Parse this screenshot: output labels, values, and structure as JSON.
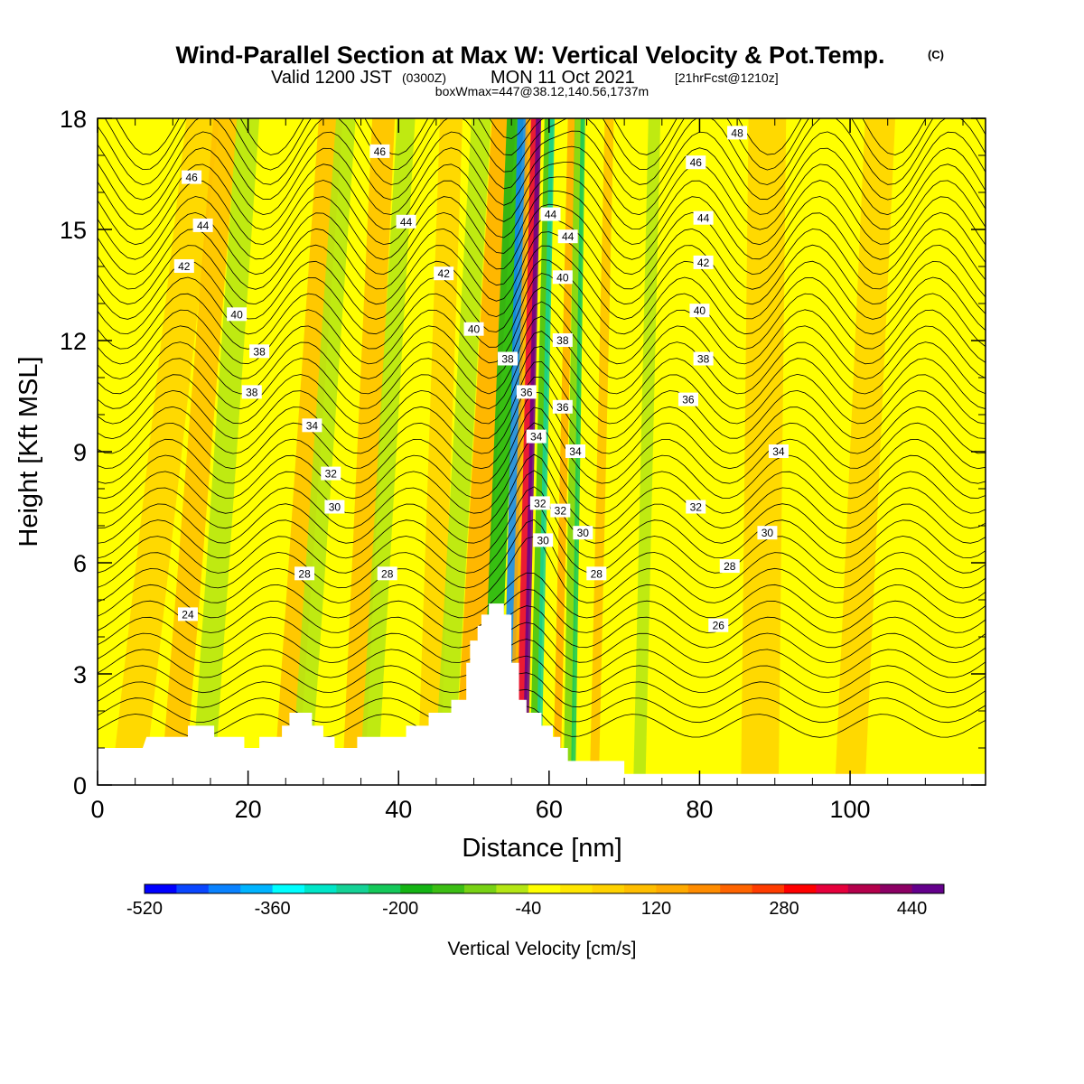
{
  "title": {
    "main": "Wind-Parallel Section at Max W: Vertical Velocity & Pot.Temp.",
    "copyright": "(C)",
    "valid_prefix": "Valid 1200 JST",
    "valid_utc": "(0300Z)",
    "valid_date": "MON 11 Oct 2021",
    "forecast": "[21hrFcst@1210z]",
    "box_info": "boxWmax=447@38.12,140.56,1737m"
  },
  "chart_data": {
    "type": "heatmap",
    "title": "Wind-Parallel Section at Max W: Vertical Velocity & Pot.Temp.",
    "xlabel": "Distance [nm]",
    "ylabel": "Height [Kft MSL]",
    "xlim": [
      0,
      118
    ],
    "ylim": [
      0,
      18
    ],
    "x_ticks": [
      "0",
      "20",
      "40",
      "60",
      "80",
      "100"
    ],
    "y_ticks": [
      "0",
      "3",
      "6",
      "9",
      "12",
      "15",
      "18"
    ],
    "x_tick_values": [
      0,
      20,
      40,
      60,
      80,
      100
    ],
    "y_tick_values": [
      0,
      3,
      6,
      9,
      12,
      15,
      18
    ],
    "grid": false,
    "terrain_profile": [
      [
        0,
        1.0
      ],
      [
        6,
        1.0
      ],
      [
        6.5,
        1.3
      ],
      [
        12,
        1.3
      ],
      [
        12,
        1.6
      ],
      [
        15.5,
        1.6
      ],
      [
        15.5,
        1.3
      ],
      [
        19.5,
        1.3
      ],
      [
        19.5,
        1.0
      ],
      [
        21.5,
        1.0
      ],
      [
        21.5,
        1.3
      ],
      [
        24.5,
        1.3
      ],
      [
        24.5,
        1.6
      ],
      [
        25.5,
        1.6
      ],
      [
        25.5,
        1.95
      ],
      [
        28.5,
        1.95
      ],
      [
        28.5,
        1.6
      ],
      [
        30,
        1.6
      ],
      [
        30,
        1.3
      ],
      [
        31.5,
        1.3
      ],
      [
        31.5,
        1.0
      ],
      [
        34.5,
        1.0
      ],
      [
        34.5,
        1.3
      ],
      [
        41,
        1.3
      ],
      [
        41,
        1.6
      ],
      [
        44,
        1.6
      ],
      [
        44,
        1.95
      ],
      [
        47,
        1.95
      ],
      [
        47,
        2.3
      ],
      [
        49,
        2.3
      ],
      [
        49,
        3.3
      ],
      [
        49.5,
        3.3
      ],
      [
        49.5,
        3.9
      ],
      [
        50.5,
        3.9
      ],
      [
        50.5,
        4.3
      ],
      [
        51,
        4.3
      ],
      [
        51,
        4.6
      ],
      [
        52,
        4.6
      ],
      [
        52,
        4.9
      ],
      [
        54,
        4.9
      ],
      [
        54,
        4.6
      ],
      [
        55,
        4.6
      ],
      [
        55,
        3.3
      ],
      [
        56,
        3.3
      ],
      [
        56,
        2.3
      ],
      [
        57,
        2.3
      ],
      [
        57,
        1.95
      ],
      [
        59,
        1.95
      ],
      [
        59,
        1.6
      ],
      [
        60.5,
        1.6
      ],
      [
        60.5,
        1.3
      ],
      [
        61.5,
        1.3
      ],
      [
        61.5,
        1.0
      ],
      [
        62.5,
        1.0
      ],
      [
        62.5,
        0.65
      ],
      [
        66,
        0.65
      ],
      [
        66,
        0.65
      ],
      [
        70,
        0.65
      ],
      [
        70,
        0.3
      ],
      [
        118,
        0.3
      ]
    ],
    "velocity_field_summary": [
      {
        "x": 55.2,
        "w": -500
      },
      {
        "x": 57.0,
        "w": 440
      },
      {
        "x": 59.2,
        "w": -200
      },
      {
        "x": 63.5,
        "w": -160
      },
      {
        "x": 50.0,
        "w": 120
      }
    ],
    "colorbar": {
      "title": "Vertical Velocity [cm/s]",
      "levels": [
        -520,
        -480,
        -440,
        -400,
        -360,
        -320,
        -280,
        -240,
        -200,
        -160,
        -120,
        -80,
        -40,
        0,
        40,
        80,
        120,
        160,
        200,
        240,
        280,
        320,
        360,
        400,
        440,
        480
      ],
      "colors": [
        "#0000ff",
        "#0a46ff",
        "#0a82ff",
        "#00b4ff",
        "#00ffff",
        "#00e6c8",
        "#14d296",
        "#14c85a",
        "#14b414",
        "#3cbe14",
        "#78d214",
        "#b4e614",
        "#ffff00",
        "#ffe600",
        "#ffd200",
        "#ffbe00",
        "#ffaa00",
        "#ff8c00",
        "#ff6400",
        "#ff3c00",
        "#ff0000",
        "#e6003c",
        "#b4004b",
        "#8c0064",
        "#64008c"
      ],
      "tick_labels": [
        "-520",
        "-360",
        "-200",
        "-40",
        "120",
        "280",
        "440"
      ],
      "tick_values": [
        -520,
        -360,
        -200,
        -40,
        120,
        280,
        440
      ]
    },
    "contour_labels": [
      {
        "text": "46",
        "x": 12.5,
        "y": 16.4
      },
      {
        "text": "44",
        "x": 14,
        "y": 15.1
      },
      {
        "text": "42",
        "x": 11.5,
        "y": 14.0
      },
      {
        "text": "40",
        "x": 18.5,
        "y": 12.7
      },
      {
        "text": "38",
        "x": 21.5,
        "y": 11.7
      },
      {
        "text": "38",
        "x": 20.5,
        "y": 10.6
      },
      {
        "text": "34",
        "x": 28.5,
        "y": 9.7
      },
      {
        "text": "32",
        "x": 31,
        "y": 8.4
      },
      {
        "text": "30",
        "x": 31.5,
        "y": 7.5
      },
      {
        "text": "28",
        "x": 27.5,
        "y": 5.7
      },
      {
        "text": "28",
        "x": 38.5,
        "y": 5.7
      },
      {
        "text": "24",
        "x": 12,
        "y": 4.6
      },
      {
        "text": "46",
        "x": 37.5,
        "y": 17.1
      },
      {
        "text": "44",
        "x": 41,
        "y": 15.2
      },
      {
        "text": "42",
        "x": 46,
        "y": 13.8
      },
      {
        "text": "40",
        "x": 50,
        "y": 12.3
      },
      {
        "text": "38",
        "x": 54.5,
        "y": 11.5
      },
      {
        "text": "36",
        "x": 57,
        "y": 10.6
      },
      {
        "text": "34",
        "x": 58.3,
        "y": 9.4
      },
      {
        "text": "32",
        "x": 58.8,
        "y": 7.6
      },
      {
        "text": "30",
        "x": 59.2,
        "y": 6.6
      },
      {
        "text": "44",
        "x": 60.2,
        "y": 15.4
      },
      {
        "text": "44",
        "x": 62.5,
        "y": 14.8
      },
      {
        "text": "40",
        "x": 61.8,
        "y": 13.7
      },
      {
        "text": "38",
        "x": 61.8,
        "y": 12.0
      },
      {
        "text": "36",
        "x": 61.8,
        "y": 10.2
      },
      {
        "text": "34",
        "x": 63.5,
        "y": 9.0
      },
      {
        "text": "32",
        "x": 61.5,
        "y": 7.4
      },
      {
        "text": "30",
        "x": 64.5,
        "y": 6.8
      },
      {
        "text": "28",
        "x": 66.3,
        "y": 5.7
      },
      {
        "text": "48",
        "x": 85,
        "y": 17.6
      },
      {
        "text": "46",
        "x": 79.5,
        "y": 16.8
      },
      {
        "text": "44",
        "x": 80.5,
        "y": 15.3
      },
      {
        "text": "42",
        "x": 80.5,
        "y": 14.1
      },
      {
        "text": "40",
        "x": 80,
        "y": 12.8
      },
      {
        "text": "38",
        "x": 80.5,
        "y": 11.5
      },
      {
        "text": "36",
        "x": 78.5,
        "y": 10.4
      },
      {
        "text": "34",
        "x": 90.5,
        "y": 9.0
      },
      {
        "text": "32",
        "x": 79.5,
        "y": 7.5
      },
      {
        "text": "30",
        "x": 89,
        "y": 6.8
      },
      {
        "text": "28",
        "x": 84,
        "y": 5.9
      },
      {
        "text": "26",
        "x": 82.5,
        "y": 4.3
      }
    ]
  }
}
